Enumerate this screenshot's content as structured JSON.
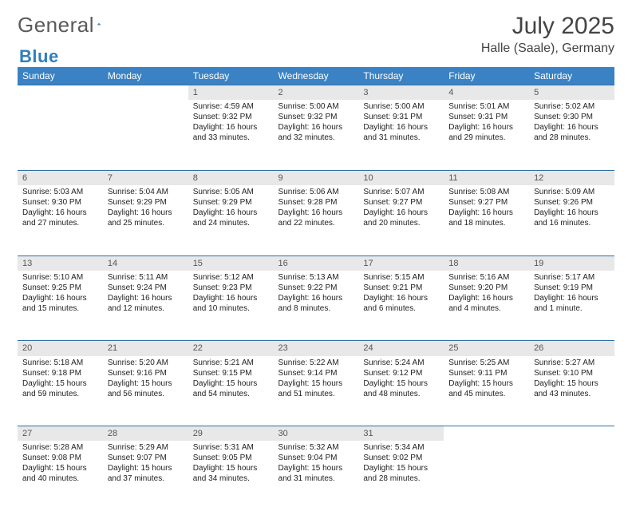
{
  "brand": {
    "name_a": "General",
    "name_b": "Blue"
  },
  "title": "July 2025",
  "location": "Halle (Saale), Germany",
  "colors": {
    "header_bg": "#3a82c4",
    "header_rule": "#2f6fa8",
    "daynum_bg": "#e8e8e8",
    "text": "#222222",
    "brand_gray": "#5a5a5a",
    "brand_blue": "#2f7fbf"
  },
  "weekdays": [
    "Sunday",
    "Monday",
    "Tuesday",
    "Wednesday",
    "Thursday",
    "Friday",
    "Saturday"
  ],
  "weeks": [
    [
      null,
      null,
      {
        "n": "1",
        "sr": "4:59 AM",
        "ss": "9:32 PM",
        "dl": "16 hours and 33 minutes."
      },
      {
        "n": "2",
        "sr": "5:00 AM",
        "ss": "9:32 PM",
        "dl": "16 hours and 32 minutes."
      },
      {
        "n": "3",
        "sr": "5:00 AM",
        "ss": "9:31 PM",
        "dl": "16 hours and 31 minutes."
      },
      {
        "n": "4",
        "sr": "5:01 AM",
        "ss": "9:31 PM",
        "dl": "16 hours and 29 minutes."
      },
      {
        "n": "5",
        "sr": "5:02 AM",
        "ss": "9:30 PM",
        "dl": "16 hours and 28 minutes."
      }
    ],
    [
      {
        "n": "6",
        "sr": "5:03 AM",
        "ss": "9:30 PM",
        "dl": "16 hours and 27 minutes."
      },
      {
        "n": "7",
        "sr": "5:04 AM",
        "ss": "9:29 PM",
        "dl": "16 hours and 25 minutes."
      },
      {
        "n": "8",
        "sr": "5:05 AM",
        "ss": "9:29 PM",
        "dl": "16 hours and 24 minutes."
      },
      {
        "n": "9",
        "sr": "5:06 AM",
        "ss": "9:28 PM",
        "dl": "16 hours and 22 minutes."
      },
      {
        "n": "10",
        "sr": "5:07 AM",
        "ss": "9:27 PM",
        "dl": "16 hours and 20 minutes."
      },
      {
        "n": "11",
        "sr": "5:08 AM",
        "ss": "9:27 PM",
        "dl": "16 hours and 18 minutes."
      },
      {
        "n": "12",
        "sr": "5:09 AM",
        "ss": "9:26 PM",
        "dl": "16 hours and 16 minutes."
      }
    ],
    [
      {
        "n": "13",
        "sr": "5:10 AM",
        "ss": "9:25 PM",
        "dl": "16 hours and 15 minutes."
      },
      {
        "n": "14",
        "sr": "5:11 AM",
        "ss": "9:24 PM",
        "dl": "16 hours and 12 minutes."
      },
      {
        "n": "15",
        "sr": "5:12 AM",
        "ss": "9:23 PM",
        "dl": "16 hours and 10 minutes."
      },
      {
        "n": "16",
        "sr": "5:13 AM",
        "ss": "9:22 PM",
        "dl": "16 hours and 8 minutes."
      },
      {
        "n": "17",
        "sr": "5:15 AM",
        "ss": "9:21 PM",
        "dl": "16 hours and 6 minutes."
      },
      {
        "n": "18",
        "sr": "5:16 AM",
        "ss": "9:20 PM",
        "dl": "16 hours and 4 minutes."
      },
      {
        "n": "19",
        "sr": "5:17 AM",
        "ss": "9:19 PM",
        "dl": "16 hours and 1 minute."
      }
    ],
    [
      {
        "n": "20",
        "sr": "5:18 AM",
        "ss": "9:18 PM",
        "dl": "15 hours and 59 minutes."
      },
      {
        "n": "21",
        "sr": "5:20 AM",
        "ss": "9:16 PM",
        "dl": "15 hours and 56 minutes."
      },
      {
        "n": "22",
        "sr": "5:21 AM",
        "ss": "9:15 PM",
        "dl": "15 hours and 54 minutes."
      },
      {
        "n": "23",
        "sr": "5:22 AM",
        "ss": "9:14 PM",
        "dl": "15 hours and 51 minutes."
      },
      {
        "n": "24",
        "sr": "5:24 AM",
        "ss": "9:12 PM",
        "dl": "15 hours and 48 minutes."
      },
      {
        "n": "25",
        "sr": "5:25 AM",
        "ss": "9:11 PM",
        "dl": "15 hours and 45 minutes."
      },
      {
        "n": "26",
        "sr": "5:27 AM",
        "ss": "9:10 PM",
        "dl": "15 hours and 43 minutes."
      }
    ],
    [
      {
        "n": "27",
        "sr": "5:28 AM",
        "ss": "9:08 PM",
        "dl": "15 hours and 40 minutes."
      },
      {
        "n": "28",
        "sr": "5:29 AM",
        "ss": "9:07 PM",
        "dl": "15 hours and 37 minutes."
      },
      {
        "n": "29",
        "sr": "5:31 AM",
        "ss": "9:05 PM",
        "dl": "15 hours and 34 minutes."
      },
      {
        "n": "30",
        "sr": "5:32 AM",
        "ss": "9:04 PM",
        "dl": "15 hours and 31 minutes."
      },
      {
        "n": "31",
        "sr": "5:34 AM",
        "ss": "9:02 PM",
        "dl": "15 hours and 28 minutes."
      },
      null,
      null
    ]
  ]
}
